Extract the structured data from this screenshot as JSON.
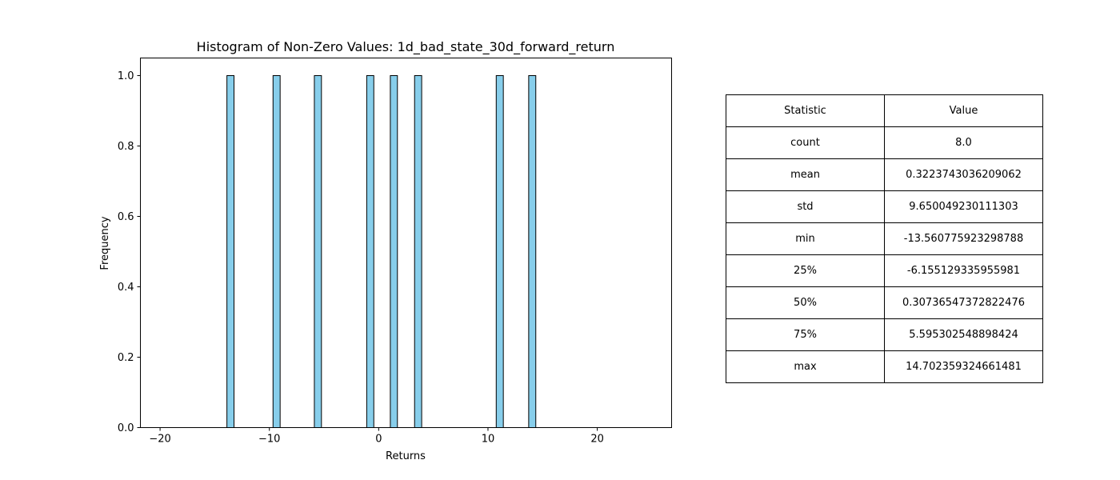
{
  "chart_data": {
    "type": "bar",
    "title": "Histogram of Non-Zero Values: 1d_bad_state_30d_forward_return",
    "xlabel": "Returns",
    "ylabel": "Frequency",
    "xlim": [
      -21.8,
      26.8
    ],
    "ylim": [
      0,
      1.05
    ],
    "x_ticks": [
      -20,
      -10,
      0,
      10,
      20
    ],
    "x_tick_labels": [
      "−20",
      "−10",
      "0",
      "10",
      "20"
    ],
    "y_ticks": [
      0.0,
      0.2,
      0.4,
      0.6,
      0.8,
      1.0
    ],
    "y_tick_labels": [
      "0.0",
      "0.2",
      "0.4",
      "0.6",
      "0.8",
      "1.0"
    ],
    "bin_width": 0.65,
    "bins": [
      {
        "x": -13.56,
        "count": 1
      },
      {
        "x": -9.34,
        "count": 1
      },
      {
        "x": -5.56,
        "count": 1
      },
      {
        "x": -0.77,
        "count": 1
      },
      {
        "x": 1.39,
        "count": 1
      },
      {
        "x": 3.61,
        "count": 1
      },
      {
        "x": 11.08,
        "count": 1
      },
      {
        "x": 14.05,
        "count": 1
      }
    ],
    "bar_color": "#87ceeb",
    "edge_color": "#000000",
    "grid": false,
    "legend": "none"
  },
  "stats_table": {
    "headers": [
      "Statistic",
      "Value"
    ],
    "rows": [
      [
        "count",
        "8.0"
      ],
      [
        "mean",
        "0.3223743036209062"
      ],
      [
        "std",
        "9.650049230111303"
      ],
      [
        "min",
        "-13.560775923298788"
      ],
      [
        "25%",
        "-6.155129335955981"
      ],
      [
        "50%",
        "0.30736547372822476"
      ],
      [
        "75%",
        "5.595302548898424"
      ],
      [
        "max",
        "14.702359324661481"
      ]
    ]
  }
}
